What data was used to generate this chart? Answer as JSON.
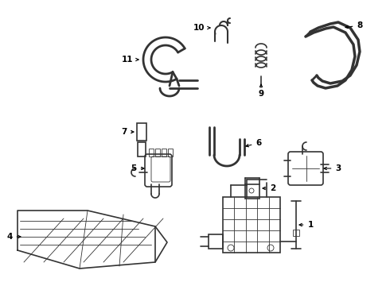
{
  "bg_color": "#ffffff",
  "line_color": "#333333",
  "figsize": [
    4.9,
    3.6
  ],
  "dpi": 100,
  "lw_hose": 2.0,
  "lw_main": 1.2,
  "lw_thin": 0.6,
  "font_size": 7.5
}
